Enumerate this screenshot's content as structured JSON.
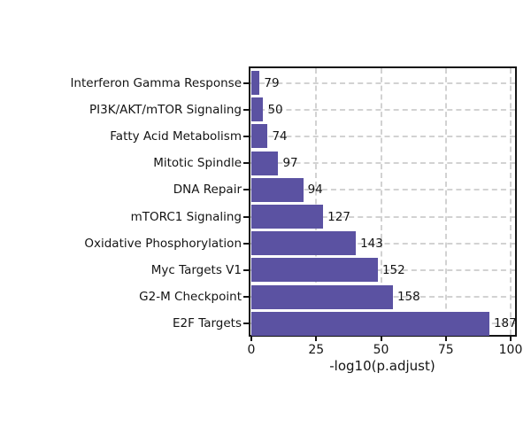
{
  "figure": {
    "background": "#ffffff",
    "frame_color": "#141414",
    "grid_color": "#d2d2d2",
    "text_color": "#141414"
  },
  "chart_data": {
    "type": "bar",
    "orientation": "horizontal",
    "title": "",
    "xlabel": "-log10(p.adjust)",
    "ylabel": "",
    "xlim": [
      0,
      102
    ],
    "xticks": [
      0,
      25,
      50,
      75,
      100
    ],
    "grid": "dashed gridlines on both axes, drawn behind bars",
    "legend": "none",
    "bar_color": "#5b52a2",
    "categories": [
      "Interferon Gamma Response",
      "PI3K/AKT/mTOR Signaling",
      "Fatty Acid Metabolism",
      "Mitotic Spindle",
      "DNA Repair",
      "mTORC1 Signaling",
      "Oxidative Phosphorylation",
      "Myc Targets V1",
      "G2-M Checkpoint",
      "E2F Targets"
    ],
    "values": [
      3.2,
      4.6,
      6.3,
      10.4,
      20.0,
      27.7,
      40.3,
      48.8,
      54.6,
      91.8
    ],
    "bar_labels": [
      "79",
      "50",
      "74",
      "97",
      "94",
      "127",
      "143",
      "152",
      "158",
      "187"
    ]
  }
}
